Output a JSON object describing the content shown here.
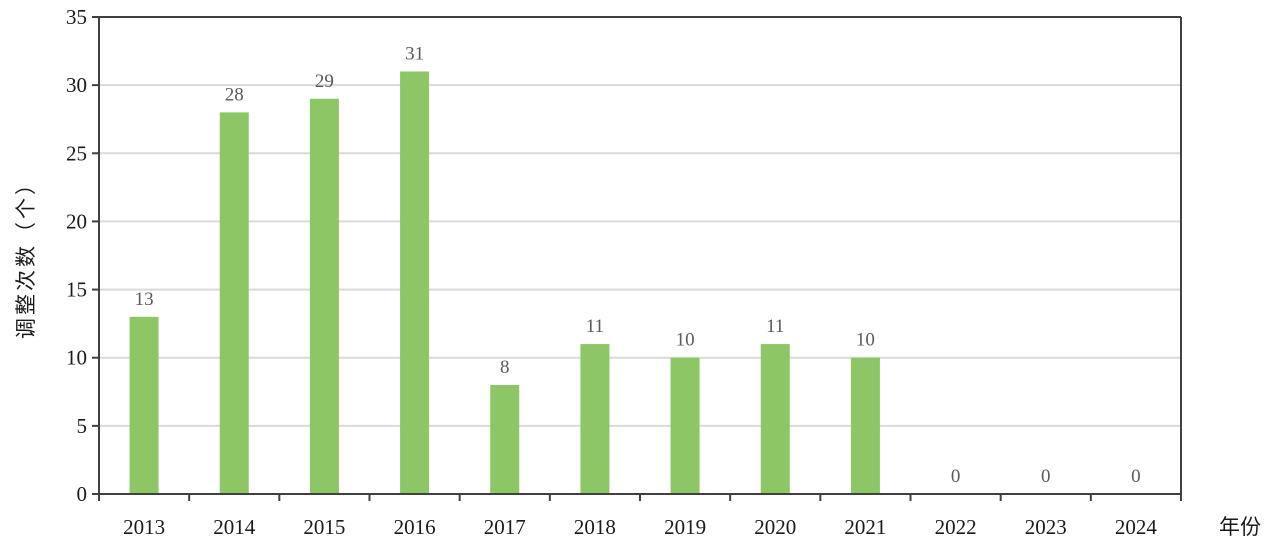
{
  "chart_data": {
    "type": "bar",
    "xlabel": "年份",
    "ylabel": "调整次数（个）",
    "categories": [
      "2013",
      "2014",
      "2015",
      "2016",
      "2017",
      "2018",
      "2019",
      "2020",
      "2021",
      "2022",
      "2023",
      "2024"
    ],
    "values": [
      13,
      28,
      29,
      31,
      8,
      11,
      10,
      11,
      10,
      0,
      0,
      0
    ],
    "ylim": [
      0,
      35
    ],
    "yticks": [
      0,
      5,
      10,
      15,
      20,
      25,
      30,
      35
    ],
    "grid": true,
    "bar_color": "#8cc665",
    "grid_color": "#d9d9d9",
    "axis_color": "#404040"
  }
}
